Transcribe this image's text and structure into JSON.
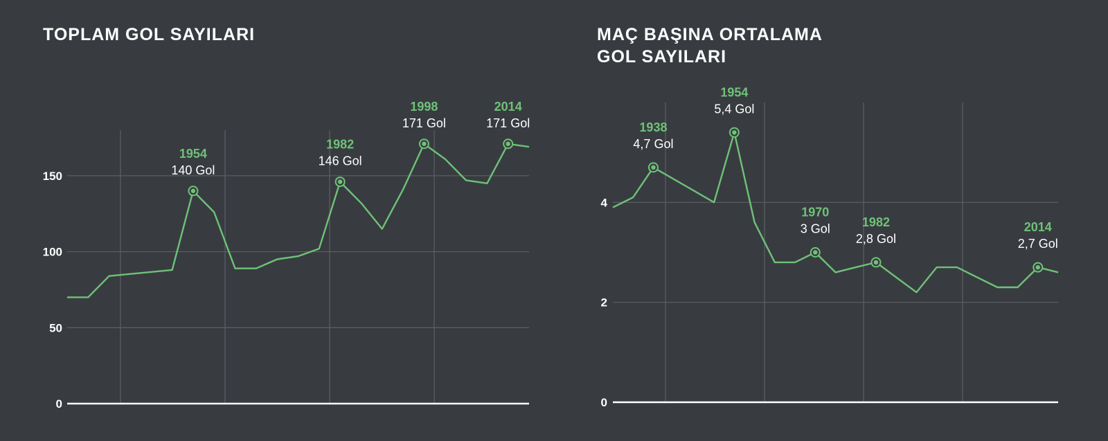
{
  "chart_data": [
    {
      "type": "line",
      "title": [
        "TOPLAM GOL SAYILARI"
      ],
      "ylim": [
        0,
        180
      ],
      "xlim": [
        1930,
        2018
      ],
      "yticks": [
        {
          "value": 0,
          "label": "0"
        },
        {
          "value": 50,
          "label": "50"
        },
        {
          "value": 100,
          "label": "100"
        },
        {
          "value": 150,
          "label": "150"
        }
      ],
      "series": [
        {
          "x": [
            1930,
            1934,
            1938,
            1950,
            1954,
            1958,
            1962,
            1966,
            1970,
            1974,
            1978,
            1982,
            1986,
            1990,
            1994,
            1998,
            2002,
            2006,
            2010,
            2014,
            2018
          ],
          "values": [
            70,
            70,
            84,
            88,
            140,
            126,
            89,
            89,
            95,
            97,
            102,
            146,
            132,
            115,
            141,
            171,
            161,
            147,
            145,
            171,
            169
          ]
        }
      ],
      "annotations": [
        {
          "x": 1954,
          "y": 140,
          "year": "1954",
          "value": "140 Gol"
        },
        {
          "x": 1982,
          "y": 146,
          "year": "1982",
          "value": "146 Gol"
        },
        {
          "x": 1998,
          "y": 171,
          "year": "1998",
          "value": "171 Gol"
        },
        {
          "x": 2014,
          "y": 171,
          "year": "2014",
          "value": "171 Gol"
        }
      ]
    },
    {
      "type": "line",
      "title": [
        "MAÇ BAŞINA ORTALAMA",
        "GOL SAYILARI"
      ],
      "ylim": [
        0,
        6
      ],
      "xlim": [
        1930,
        2018
      ],
      "yticks": [
        {
          "value": 0,
          "label": "0"
        },
        {
          "value": 2,
          "label": "2"
        },
        {
          "value": 4,
          "label": "4"
        }
      ],
      "series": [
        {
          "x": [
            1930,
            1934,
            1938,
            1950,
            1954,
            1958,
            1962,
            1966,
            1970,
            1974,
            1978,
            1982,
            1986,
            1990,
            1994,
            1998,
            2002,
            2006,
            2010,
            2014,
            2018
          ],
          "values": [
            3.9,
            4.1,
            4.7,
            4.0,
            5.4,
            3.6,
            2.8,
            2.8,
            3.0,
            2.6,
            2.7,
            2.8,
            2.5,
            2.2,
            2.7,
            2.7,
            2.5,
            2.3,
            2.3,
            2.7,
            2.6
          ]
        }
      ],
      "annotations": [
        {
          "x": 1938,
          "y": 4.7,
          "year": "1938",
          "value": "4,7 Gol"
        },
        {
          "x": 1954,
          "y": 5.4,
          "year": "1954",
          "value": "5,4 Gol"
        },
        {
          "x": 1970,
          "y": 3.0,
          "year": "1970",
          "value": "3 Gol"
        },
        {
          "x": 1982,
          "y": 2.8,
          "year": "1982",
          "value": "2,8 Gol"
        },
        {
          "x": 2014,
          "y": 2.7,
          "year": "2014",
          "value": "2,7 Gol"
        }
      ]
    }
  ],
  "colors": {
    "background": "#383c41",
    "series": "#6fc277",
    "grid": "#5c6066",
    "text": "#ffffff"
  }
}
